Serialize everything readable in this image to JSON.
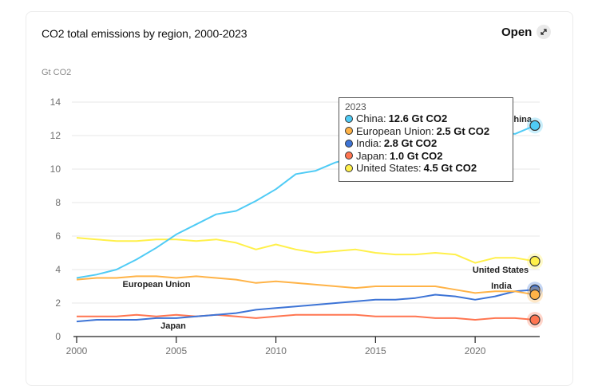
{
  "header": {
    "title": "CO2 total emissions by region, 2000-2023",
    "open_label": "Open",
    "open_icon": "expand-arrows-icon"
  },
  "chart_data": {
    "type": "line",
    "title": "CO2 total emissions by region, 2000-2023",
    "xlabel": "",
    "ylabel": "Gt CO2",
    "ylim": [
      0,
      14
    ],
    "xlim": [
      2000,
      2023
    ],
    "yticks": [
      0,
      2,
      4,
      6,
      8,
      10,
      12,
      14
    ],
    "xticks": [
      2000,
      2005,
      2010,
      2015,
      2020
    ],
    "grid": true,
    "x": [
      2000,
      2001,
      2002,
      2003,
      2004,
      2005,
      2006,
      2007,
      2008,
      2009,
      2010,
      2011,
      2012,
      2013,
      2014,
      2015,
      2016,
      2017,
      2018,
      2019,
      2020,
      2021,
      2022,
      2023
    ],
    "series": [
      {
        "name": "China",
        "color": "#4fcbf5",
        "values": [
          3.5,
          3.7,
          4.0,
          4.6,
          5.3,
          6.1,
          6.7,
          7.3,
          7.5,
          8.1,
          8.8,
          9.7,
          9.9,
          10.4,
          10.7,
          10.6,
          10.6,
          10.9,
          11.3,
          11.5,
          11.6,
          12.2,
          12.1,
          12.6
        ]
      },
      {
        "name": "European Union",
        "color": "#ffb347",
        "values": [
          3.4,
          3.5,
          3.5,
          3.6,
          3.6,
          3.5,
          3.6,
          3.5,
          3.4,
          3.2,
          3.3,
          3.2,
          3.1,
          3.0,
          2.9,
          3.0,
          3.0,
          3.0,
          3.0,
          2.8,
          2.6,
          2.7,
          2.7,
          2.5
        ]
      },
      {
        "name": "India",
        "color": "#3d74d6",
        "values": [
          0.9,
          1.0,
          1.0,
          1.0,
          1.1,
          1.1,
          1.2,
          1.3,
          1.4,
          1.6,
          1.7,
          1.8,
          1.9,
          2.0,
          2.1,
          2.2,
          2.2,
          2.3,
          2.5,
          2.4,
          2.2,
          2.4,
          2.7,
          2.8
        ]
      },
      {
        "name": "Japan",
        "color": "#ff7550",
        "values": [
          1.2,
          1.2,
          1.2,
          1.3,
          1.2,
          1.3,
          1.2,
          1.3,
          1.2,
          1.1,
          1.2,
          1.3,
          1.3,
          1.3,
          1.3,
          1.2,
          1.2,
          1.2,
          1.1,
          1.1,
          1.0,
          1.1,
          1.1,
          1.0
        ]
      },
      {
        "name": "United States",
        "color": "#fff04a",
        "values": [
          5.9,
          5.8,
          5.7,
          5.7,
          5.8,
          5.8,
          5.7,
          5.8,
          5.6,
          5.2,
          5.5,
          5.2,
          5.0,
          5.1,
          5.2,
          5.0,
          4.9,
          4.9,
          5.0,
          4.9,
          4.4,
          4.7,
          4.7,
          4.5
        ]
      }
    ],
    "series_labels": [
      {
        "series": "China",
        "text": "China"
      },
      {
        "series": "European Union",
        "text": "European Union"
      },
      {
        "series": "India",
        "text": "India"
      },
      {
        "series": "Japan",
        "text": "Japan"
      },
      {
        "series": "United States",
        "text": "United States"
      }
    ],
    "tooltip": {
      "year": "2023",
      "rows": [
        {
          "name": "China",
          "label": "China:",
          "value": "12.6 Gt CO2",
          "color": "#4fcbf5"
        },
        {
          "name": "European Union",
          "label": "European Union:",
          "value": "2.5 Gt CO2",
          "color": "#ffb347"
        },
        {
          "name": "India",
          "label": "India:",
          "value": "2.8 Gt CO2",
          "color": "#3d74d6"
        },
        {
          "name": "Japan",
          "label": "Japan:",
          "value": "1.0 Gt CO2",
          "color": "#ff7550"
        },
        {
          "name": "United States",
          "label": "United States:",
          "value": "4.5 Gt CO2",
          "color": "#fff04a"
        }
      ]
    }
  }
}
